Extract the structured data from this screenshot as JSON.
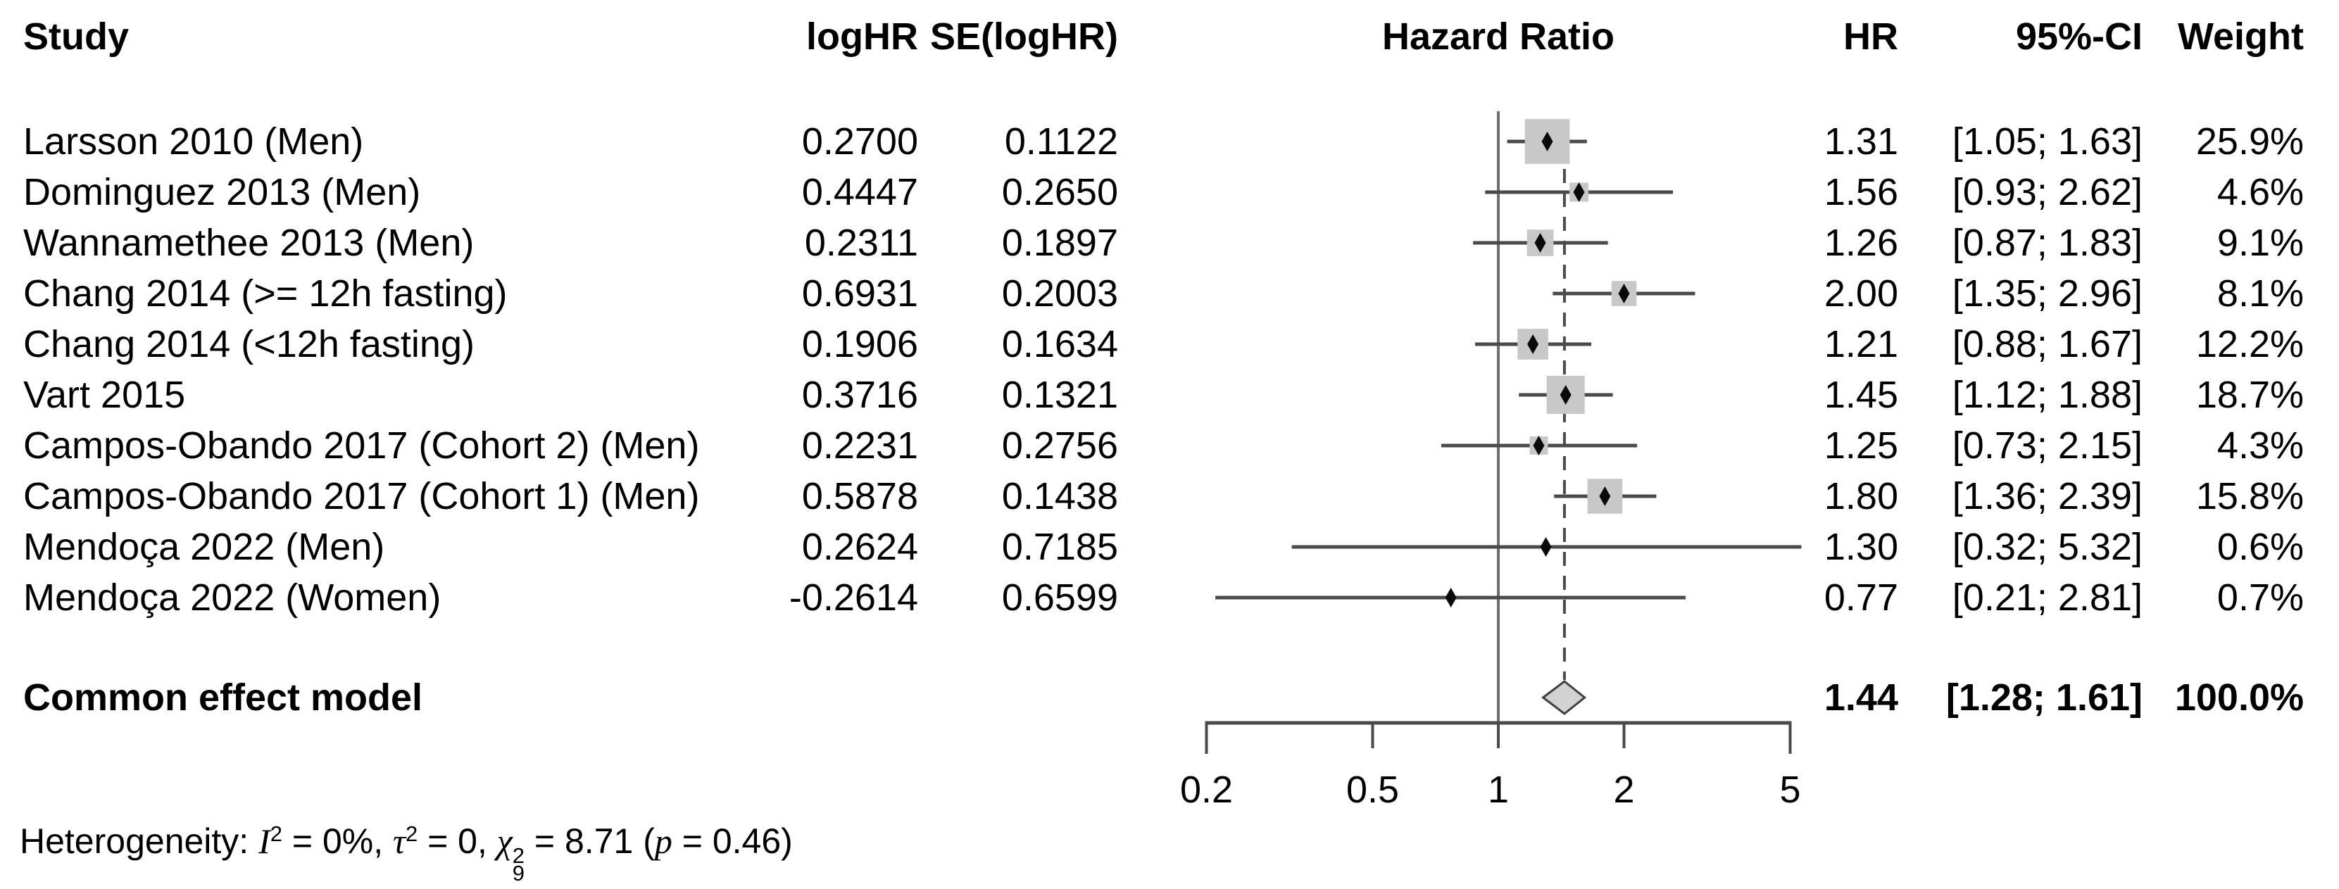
{
  "columns": {
    "study": "Study",
    "logHR": "logHR",
    "se": "SE(logHR)",
    "plot": "Hazard Ratio",
    "hr": "HR",
    "ci": "95%-CI",
    "weight": "Weight"
  },
  "chart_data": {
    "type": "forest",
    "title": "Hazard Ratio",
    "x_scale": "log",
    "x_ticks": [
      0.2,
      0.5,
      1,
      2,
      5
    ],
    "x_tick_labels": [
      "0.2",
      "0.5",
      "1",
      "2",
      "5"
    ],
    "ref_line": 1,
    "studies": [
      {
        "name": "Larsson 2010 (Men)",
        "logHR": "0.2700",
        "se_logHR": "0.1122",
        "hr": 1.31,
        "ci_low": 1.05,
        "ci_high": 1.63,
        "hr_label": "1.31",
        "ci_label": "[1.05; 1.63]",
        "weight_pct": 25.9,
        "weight_label": "25.9%"
      },
      {
        "name": "Dominguez 2013 (Men)",
        "logHR": "0.4447",
        "se_logHR": "0.2650",
        "hr": 1.56,
        "ci_low": 0.93,
        "ci_high": 2.62,
        "hr_label": "1.56",
        "ci_label": "[0.93; 2.62]",
        "weight_pct": 4.6,
        "weight_label": "4.6%"
      },
      {
        "name": "Wannamethee 2013 (Men)",
        "logHR": "0.2311",
        "se_logHR": "0.1897",
        "hr": 1.26,
        "ci_low": 0.87,
        "ci_high": 1.83,
        "hr_label": "1.26",
        "ci_label": "[0.87; 1.83]",
        "weight_pct": 9.1,
        "weight_label": "9.1%"
      },
      {
        "name": "Chang 2014 (>= 12h fasting)",
        "logHR": "0.6931",
        "se_logHR": "0.2003",
        "hr": 2.0,
        "ci_low": 1.35,
        "ci_high": 2.96,
        "hr_label": "2.00",
        "ci_label": "[1.35; 2.96]",
        "weight_pct": 8.1,
        "weight_label": "8.1%"
      },
      {
        "name": "Chang 2014 (<12h fasting)",
        "logHR": "0.1906",
        "se_logHR": "0.1634",
        "hr": 1.21,
        "ci_low": 0.88,
        "ci_high": 1.67,
        "hr_label": "1.21",
        "ci_label": "[0.88; 1.67]",
        "weight_pct": 12.2,
        "weight_label": "12.2%"
      },
      {
        "name": "Vart 2015",
        "logHR": "0.3716",
        "se_logHR": "0.1321",
        "hr": 1.45,
        "ci_low": 1.12,
        "ci_high": 1.88,
        "hr_label": "1.45",
        "ci_label": "[1.12; 1.88]",
        "weight_pct": 18.7,
        "weight_label": "18.7%"
      },
      {
        "name": "Campos-Obando 2017 (Cohort 2) (Men)",
        "logHR": "0.2231",
        "se_logHR": "0.2756",
        "hr": 1.25,
        "ci_low": 0.73,
        "ci_high": 2.15,
        "hr_label": "1.25",
        "ci_label": "[0.73; 2.15]",
        "weight_pct": 4.3,
        "weight_label": "4.3%"
      },
      {
        "name": "Campos-Obando 2017 (Cohort 1) (Men)",
        "logHR": "0.5878",
        "se_logHR": "0.1438",
        "hr": 1.8,
        "ci_low": 1.36,
        "ci_high": 2.39,
        "hr_label": "1.80",
        "ci_label": "[1.36; 2.39]",
        "weight_pct": 15.8,
        "weight_label": "15.8%"
      },
      {
        "name": "Mendoça 2022 (Men)",
        "logHR": "0.2624",
        "se_logHR": "0.7185",
        "hr": 1.3,
        "ci_low": 0.32,
        "ci_high": 5.32,
        "hr_label": "1.30",
        "ci_label": "[0.32; 5.32]",
        "weight_pct": 0.6,
        "weight_label": "0.6%"
      },
      {
        "name": "Mendoça 2022 (Women)",
        "logHR": "-0.2614",
        "se_logHR": "0.6599",
        "hr": 0.77,
        "ci_low": 0.21,
        "ci_high": 2.81,
        "hr_label": "0.77",
        "ci_label": "[0.21; 2.81]",
        "weight_pct": 0.7,
        "weight_label": "0.7%"
      }
    ],
    "summary": {
      "name": "Common effect model",
      "hr": 1.44,
      "ci_low": 1.28,
      "ci_high": 1.61,
      "hr_label": "1.44",
      "ci_label": "[1.28; 1.61]",
      "weight_label": "100.0%"
    },
    "heterogeneity": {
      "label": "Heterogeneity: ",
      "i_sym": "I",
      "i_exp": "2",
      "seg1": " = 0%, ",
      "tau_sym": "τ",
      "tau_exp": "2",
      "seg2": " = 0, ",
      "chi_sym": "χ",
      "chi_exp": "2",
      "chi_df": "9",
      "seg3": " = 8.71 (",
      "p_sym": "p",
      "seg4": " = 0.46)"
    }
  },
  "colors": {
    "text": "#000000",
    "ci_line": "#4a4a4a",
    "axis": "#4a4a4a",
    "ref_line": "#6e6e6e",
    "dashed_line": "#4a4a4a",
    "square_fill": "#c8c8c8",
    "marker": "#0a0a0a",
    "diamond_fill": "#d2d2d2",
    "diamond_stroke": "#3f3f3f"
  }
}
